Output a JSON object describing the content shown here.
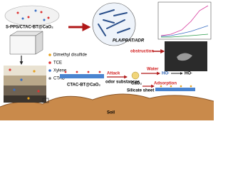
{
  "labels": {
    "composite": "S-PPS/CTAC-BT@CaO₂",
    "matrix": "PLA/PBAT/ADR",
    "obstruction": "obstruction",
    "legend": [
      "Dimethyl disulfide",
      "TCE",
      "Xylene",
      "CTAC"
    ],
    "filler": "CTAC-BT@CaO₂",
    "attack": "Attack",
    "odor": "odor substances",
    "cao2": "CaO₂",
    "water": "Water",
    "radical_1": "HO·",
    "radical_2": "HO·",
    "adsorption": "Adsorption",
    "silicate": "Silicate sheet",
    "soil": "Soil"
  }
}
